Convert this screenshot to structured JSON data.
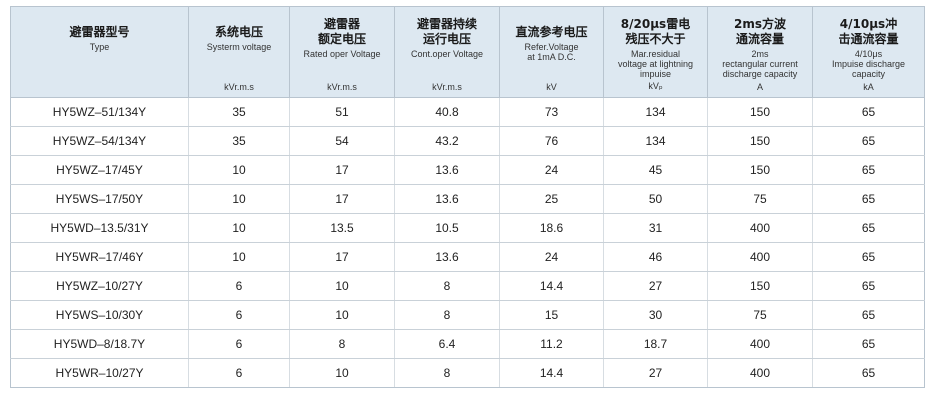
{
  "header": [
    {
      "zh": "避雷器型号",
      "en": "Type",
      "unit": ""
    },
    {
      "zh": "系统电压",
      "en": "Systerm voltage",
      "unit": "kVr.m.s"
    },
    {
      "zh": "避雷器\n额定电压",
      "en": "Rated oper Voltage",
      "unit": "kVr.m.s"
    },
    {
      "zh": "避雷器持续\n运行电压",
      "en": "Cont.oper  Voltage",
      "unit": "kVr.m.s"
    },
    {
      "zh": "直流参考电压",
      "en": "Refer.Voltage\nat 1mA D.C.",
      "unit": "kV"
    },
    {
      "zh": "8/20μs雷电\n残压不大于",
      "en": "Mar.residual\nvoltage at lightning\nimpuise",
      "unit": "kVₚ"
    },
    {
      "zh": "2ms方波\n通流容量",
      "en": "2ms\nrectangular current\ndischarge capacity",
      "unit": "A"
    },
    {
      "zh": "4/10μs冲\n击通流容量",
      "en": "4/10μs\nImpuise discharge\ncapacity",
      "unit": "kA"
    }
  ],
  "rows": [
    [
      "HY5WZ–51/134Y",
      "35",
      "51",
      "40.8",
      "73",
      "134",
      "150",
      "65"
    ],
    [
      "HY5WZ–54/134Y",
      "35",
      "54",
      "43.2",
      "76",
      "134",
      "150",
      "65"
    ],
    [
      "HY5WZ–17/45Y",
      "10",
      "17",
      "13.6",
      "24",
      "45",
      "150",
      "65"
    ],
    [
      "HY5WS–17/50Y",
      "10",
      "17",
      "13.6",
      "25",
      "50",
      "75",
      "65"
    ],
    [
      "HY5WD–13.5/31Y",
      "10",
      "13.5",
      "10.5",
      "18.6",
      "31",
      "400",
      "65"
    ],
    [
      "HY5WR–17/46Y",
      "10",
      "17",
      "13.6",
      "24",
      "46",
      "400",
      "65"
    ],
    [
      "HY5WZ–10/27Y",
      "6",
      "10",
      "8",
      "14.4",
      "27",
      "150",
      "65"
    ],
    [
      "HY5WS–10/30Y",
      "6",
      "10",
      "8",
      "15",
      "30",
      "75",
      "65"
    ],
    [
      "HY5WD–8/18.7Y",
      "6",
      "8",
      "6.4",
      "11.2",
      "18.7",
      "400",
      "65"
    ],
    [
      "HY5WR–10/27Y",
      "6",
      "10",
      "8",
      "14.4",
      "27",
      "400",
      "65"
    ]
  ]
}
